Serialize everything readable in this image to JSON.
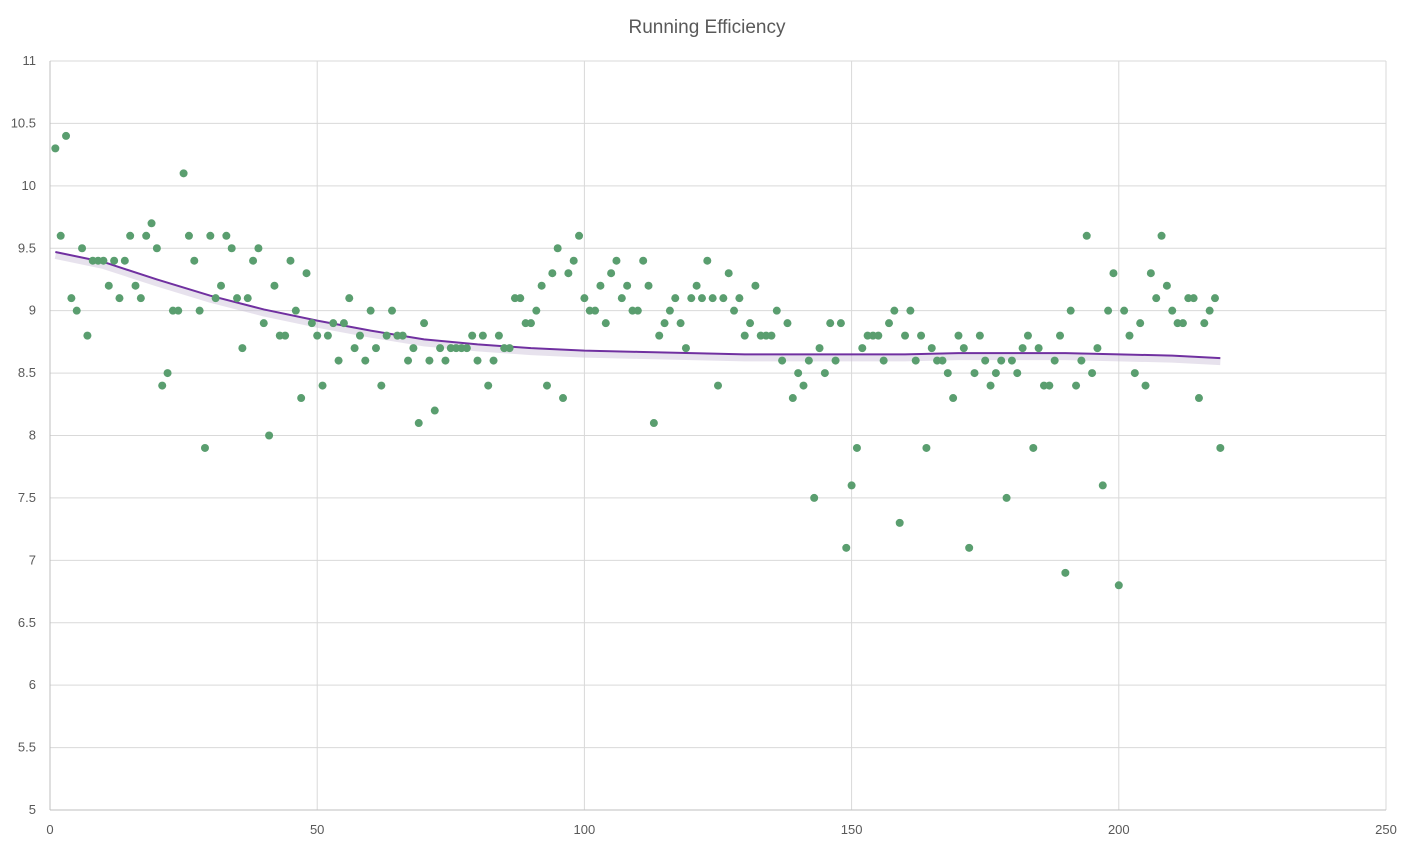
{
  "chart_data": {
    "type": "scatter",
    "title": "Running Efficiency",
    "xlabel": "",
    "ylabel": "",
    "xlim": [
      0,
      250
    ],
    "ylim": [
      5,
      11
    ],
    "x_ticks": [
      "0",
      "50",
      "100",
      "150",
      "200",
      "250"
    ],
    "y_ticks": [
      "5",
      "5.5",
      "6",
      "6.5",
      "7",
      "7.5",
      "8",
      "8.5",
      "9",
      "9.5",
      "10",
      "10.5",
      "11"
    ],
    "grid": true,
    "legend": "none",
    "colors": {
      "points": "#5a9e6f",
      "trendline": "#7030a0",
      "grid": "#d9d9d9",
      "text": "#595959"
    },
    "series": [
      {
        "name": "Running Efficiency",
        "kind": "scatter",
        "x": [
          1,
          2,
          3,
          4,
          5,
          6,
          7,
          8,
          9,
          10,
          11,
          12,
          13,
          14,
          15,
          16,
          17,
          18,
          19,
          20,
          21,
          22,
          23,
          24,
          25,
          26,
          27,
          28,
          29,
          30,
          31,
          32,
          33,
          34,
          35,
          36,
          37,
          38,
          39,
          40,
          41,
          42,
          43,
          44,
          45,
          46,
          47,
          48,
          49,
          50,
          51,
          52,
          53,
          54,
          55,
          56,
          57,
          58,
          59,
          60,
          61,
          62,
          63,
          64,
          65,
          66,
          67,
          68,
          69,
          70,
          71,
          72,
          73,
          74,
          75,
          76,
          77,
          78,
          79,
          80,
          81,
          82,
          83,
          84,
          85,
          86,
          87,
          88,
          89,
          90,
          91,
          92,
          93,
          94,
          95,
          96,
          97,
          98,
          99,
          100,
          101,
          102,
          103,
          104,
          105,
          106,
          107,
          108,
          109,
          110,
          111,
          112,
          113,
          114,
          115,
          116,
          117,
          118,
          119,
          120,
          121,
          122,
          123,
          124,
          125,
          126,
          127,
          128,
          129,
          130,
          131,
          132,
          133,
          134,
          135,
          136,
          137,
          138,
          139,
          140,
          141,
          142,
          143,
          144,
          145,
          146,
          147,
          148,
          149,
          150,
          151,
          152,
          153,
          154,
          155,
          156,
          157,
          158,
          159,
          160,
          161,
          162,
          163,
          164,
          165,
          166,
          167,
          168,
          169,
          170,
          171,
          172,
          173,
          174,
          175,
          176,
          177,
          178,
          179,
          180,
          181,
          182,
          183,
          184,
          185,
          186,
          187,
          188,
          189,
          190,
          191,
          192,
          193,
          194,
          195,
          196,
          197,
          198,
          199,
          200,
          201,
          202,
          203,
          204,
          205,
          206,
          207,
          208,
          209,
          210,
          211,
          212,
          213,
          214,
          215,
          216,
          217,
          218,
          219
        ],
        "y": [
          10.3,
          9.6,
          10.4,
          9.1,
          9.0,
          9.5,
          8.8,
          9.4,
          9.4,
          9.4,
          9.2,
          9.4,
          9.1,
          9.4,
          9.6,
          9.2,
          9.1,
          9.6,
          9.7,
          9.5,
          8.4,
          8.5,
          9.0,
          9.0,
          10.1,
          9.6,
          9.4,
          9.0,
          7.9,
          9.6,
          9.1,
          9.2,
          9.6,
          9.5,
          9.1,
          8.7,
          9.1,
          9.4,
          9.5,
          8.9,
          8.0,
          9.2,
          8.8,
          8.8,
          9.4,
          9.0,
          8.3,
          9.3,
          8.9,
          8.8,
          8.4,
          8.8,
          8.9,
          8.6,
          8.9,
          9.1,
          8.7,
          8.8,
          8.6,
          9.0,
          8.7,
          8.4,
          8.8,
          9.0,
          8.8,
          8.8,
          8.6,
          8.7,
          8.1,
          8.9,
          8.6,
          8.2,
          8.7,
          8.6,
          8.7,
          8.7,
          8.7,
          8.7,
          8.8,
          8.6,
          8.8,
          8.4,
          8.6,
          8.8,
          8.7,
          8.7,
          9.1,
          9.1,
          8.9,
          8.9,
          9.0,
          9.2,
          8.4,
          9.3,
          9.5,
          8.3,
          9.3,
          9.4,
          9.6,
          9.1,
          9.0,
          9.0,
          9.2,
          8.9,
          9.3,
          9.4,
          9.1,
          9.2,
          9.0,
          9.0,
          9.4,
          9.2,
          8.1,
          8.8,
          8.9,
          9.0,
          9.1,
          8.9,
          8.7,
          9.1,
          9.2,
          9.1,
          9.4,
          9.1,
          8.4,
          9.1,
          9.3,
          9.0,
          9.1,
          8.8,
          8.9,
          9.2,
          8.8,
          8.8,
          8.8,
          9.0,
          8.6,
          8.9,
          8.3,
          8.5,
          8.4,
          8.6,
          7.5,
          8.7,
          8.5,
          8.9,
          8.6,
          8.9,
          7.1,
          7.6,
          7.9,
          8.7,
          8.8,
          8.8,
          8.8,
          8.6,
          8.9,
          9.0,
          7.3,
          8.8,
          9.0,
          8.6,
          8.8,
          7.9,
          8.7,
          8.6,
          8.6,
          8.5,
          8.3,
          8.8,
          8.7,
          7.1,
          8.5,
          8.8,
          8.6,
          8.4,
          8.5,
          8.6,
          7.5,
          8.6,
          8.5,
          8.7,
          8.8,
          7.9,
          8.7,
          8.4,
          8.4,
          8.6,
          8.8,
          6.9,
          9.0,
          8.4,
          8.6,
          9.6,
          8.5,
          8.7,
          7.6,
          9.0,
          9.3,
          6.8,
          9.0,
          8.8,
          8.5,
          8.9,
          8.4,
          9.3,
          9.1,
          9.6,
          9.2,
          9.0,
          8.9,
          8.9,
          9.1,
          9.1,
          8.3,
          8.9,
          9.0,
          9.1,
          7.9
        ]
      },
      {
        "name": "Trendline",
        "kind": "line",
        "x": [
          1,
          10,
          20,
          30,
          40,
          50,
          60,
          70,
          80,
          90,
          100,
          110,
          120,
          130,
          140,
          150,
          160,
          170,
          180,
          190,
          200,
          210,
          219
        ],
        "y": [
          9.47,
          9.39,
          9.25,
          9.12,
          9.01,
          8.92,
          8.84,
          8.77,
          8.73,
          8.7,
          8.68,
          8.67,
          8.66,
          8.65,
          8.65,
          8.65,
          8.65,
          8.66,
          8.66,
          8.66,
          8.65,
          8.64,
          8.62
        ]
      }
    ]
  }
}
